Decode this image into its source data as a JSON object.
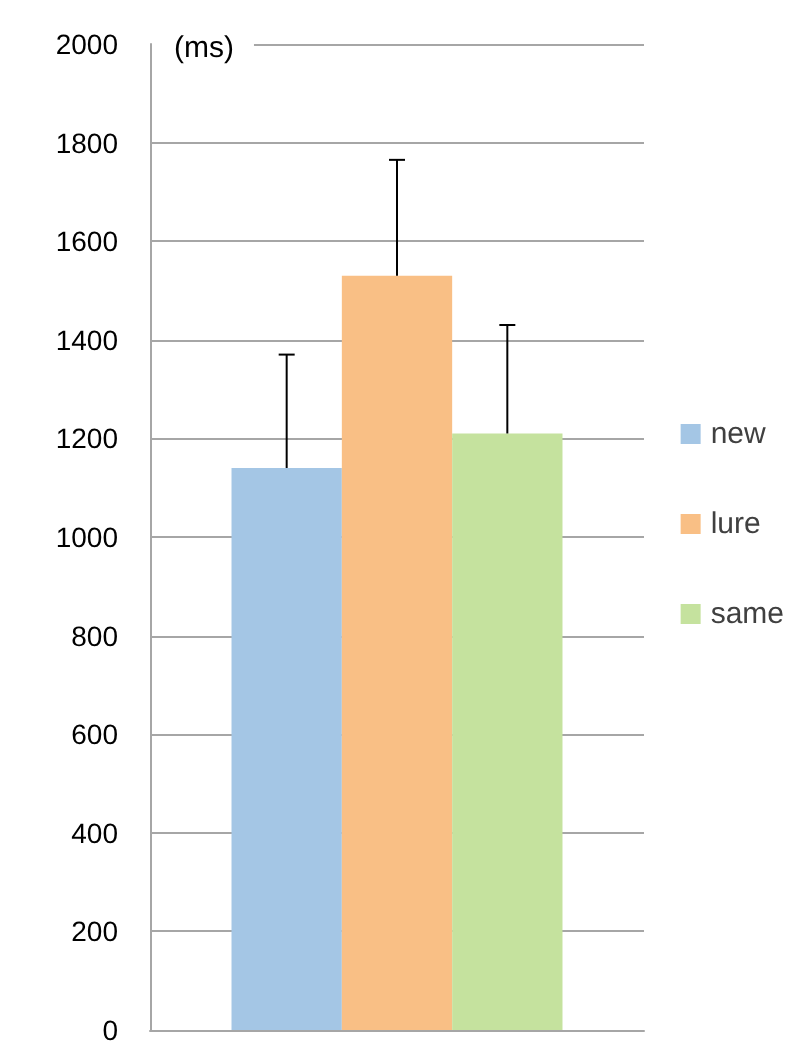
{
  "chart_data": {
    "type": "bar",
    "ylabel": "(ms)",
    "categories": [
      null
    ],
    "series": [
      {
        "name": "new",
        "color": "#a4c6e5",
        "values": [
          1140
        ],
        "errors": [
          [
            1140,
            1370
          ]
        ]
      },
      {
        "name": "lure",
        "color": "#f9bf85",
        "values": [
          1530
        ],
        "errors": [
          [
            1530,
            1765
          ]
        ]
      },
      {
        "name": "same",
        "color": "#c5e29e",
        "values": [
          1210
        ],
        "errors": [
          [
            1210,
            1430
          ]
        ]
      }
    ],
    "ylim": [
      0,
      2000
    ],
    "yticks": [
      0,
      200,
      400,
      600,
      800,
      1000,
      1200,
      1400,
      1600,
      1800,
      2000
    ],
    "grid": "y",
    "legend": "right"
  }
}
